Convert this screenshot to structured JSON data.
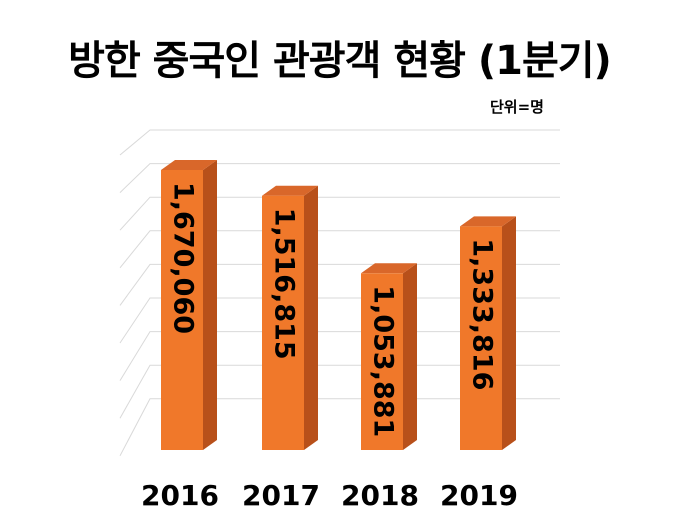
{
  "chart_data": {
    "type": "bar",
    "title": "방한 중국인 관광객 현황 (1분기)",
    "unit": "단위=명",
    "categories": [
      "2016",
      "2017",
      "2018",
      "2019"
    ],
    "values": [
      1670060,
      1516815,
      1053881,
      1333816
    ],
    "value_labels": [
      "1,670,060",
      "1,516,815",
      "1,053,881",
      "1,333,816"
    ],
    "ylim": [
      0,
      2000000
    ],
    "grid": true,
    "bar_color": "#f0782a",
    "bar_side_color": "#b8501a",
    "bar_top_color": "#d9672a"
  }
}
